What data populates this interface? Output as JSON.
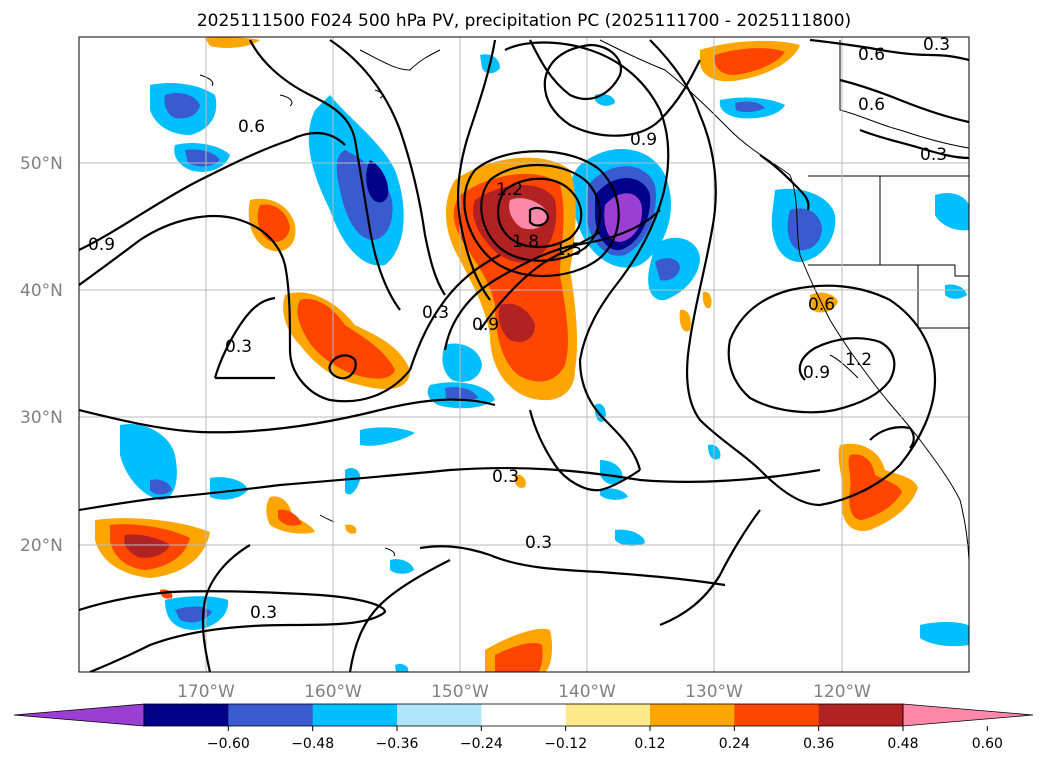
{
  "title": "2025111500 F024 500 hPa PV, precipitation PC (2025111700 - 2025111800)",
  "map": {
    "lat_labels": [
      "50°N",
      "40°N",
      "30°N",
      "20°N"
    ],
    "lon_labels": [
      "170°W",
      "160°W",
      "150°W",
      "140°W",
      "130°W",
      "120°W"
    ],
    "lat_values": [
      50,
      40,
      30,
      20
    ],
    "lon_values": [
      -170,
      -160,
      -150,
      -140,
      -130,
      -120
    ],
    "extent": {
      "lon_min": -180,
      "lon_max": -110,
      "lat_min": 10,
      "lat_max": 60
    },
    "contour_labels": [
      "0.3",
      "0.3",
      "0.3",
      "0.3",
      "0.3",
      "0.3",
      "0.3",
      "0.6",
      "0.6",
      "0.6",
      "0.6",
      "0.9",
      "0.9",
      "0.9",
      "0.9",
      "1.2",
      "1.2",
      "1.5",
      "1.8"
    ]
  },
  "colorbar": {
    "ticks": [
      "−0.60",
      "−0.48",
      "−0.36",
      "−0.24",
      "−0.12",
      "0.12",
      "0.24",
      "0.36",
      "0.48",
      "0.60"
    ],
    "colors": [
      "#9a3ed4",
      "#000088",
      "#3a5bd0",
      "#00bfff",
      "#b0e4fb",
      "#ffffff",
      "#ffea8a",
      "#ffa500",
      "#ff4500",
      "#b22222",
      "#ff88aa"
    ]
  }
}
